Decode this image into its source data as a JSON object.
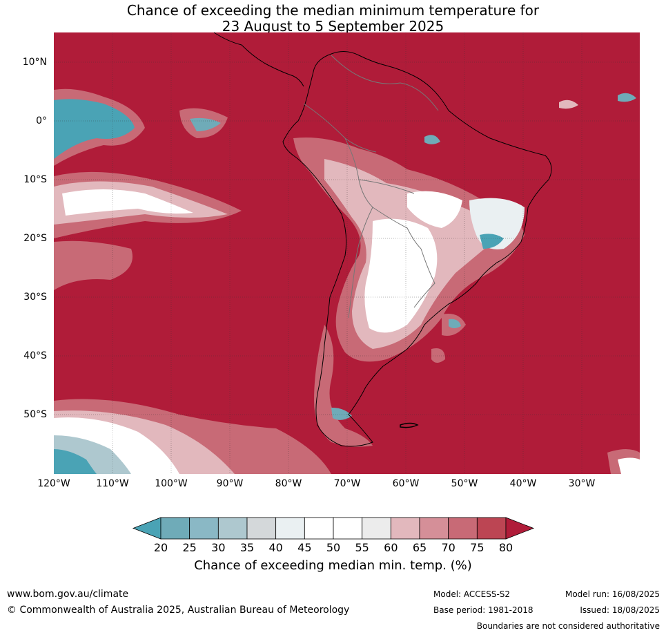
{
  "title_line1": "Chance of exceeding the median minimum temperature for",
  "title_line2": "23 August to 5 September 2025",
  "lat_labels": [
    "10°N",
    "0°",
    "10°S",
    "20°S",
    "30°S",
    "40°S",
    "50°S"
  ],
  "lon_labels": [
    "120°W",
    "110°W",
    "100°W",
    "90°W",
    "80°W",
    "70°W",
    "60°W",
    "50°W",
    "40°W",
    "30°W"
  ],
  "colorbar": {
    "ticks": [
      "20",
      "25",
      "30",
      "35",
      "40",
      "45",
      "50",
      "55",
      "60",
      "65",
      "70",
      "75",
      "80"
    ],
    "colors": [
      "#4aa3b5",
      "#6fabb8",
      "#8ab8c5",
      "#aec8cf",
      "#d4d8da",
      "#eaf0f2",
      "#ffffff",
      "#ffffff",
      "#ececec",
      "#e2b8bd",
      "#d58f98",
      "#c86a76",
      "#bc4553",
      "#b01c39"
    ],
    "title": "Chance of exceeding median min. temp. (%)"
  },
  "footer": {
    "url": "www.bom.gov.au/climate",
    "copyright": "© Commonwealth of Australia 2025, Australian Bureau of Meteorology",
    "model": "Model: ACCESS-S2",
    "base_period": "Base period: 1981-2018",
    "model_run": "Model run: 16/08/2025",
    "issued": "Issued: 18/08/2025",
    "boundaries": "Boundaries are not considered authoritative"
  }
}
